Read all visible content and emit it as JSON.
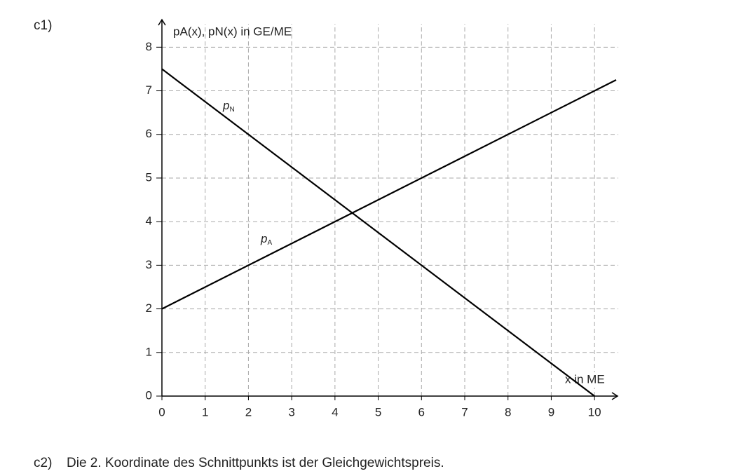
{
  "part1": {
    "label": "c1)"
  },
  "chart_data": {
    "type": "line",
    "y_label": "pA(x), pN(x) in GE/ME",
    "x_label": "x in ME",
    "xlim": [
      0,
      10.5
    ],
    "ylim": [
      0,
      8.6
    ],
    "xticks": [
      0,
      1,
      2,
      3,
      4,
      5,
      6,
      7,
      8,
      9,
      10
    ],
    "yticks": [
      0,
      1,
      2,
      3,
      4,
      5,
      6,
      7,
      8
    ],
    "grid": true,
    "series": [
      {
        "name": "pA",
        "color": "#000000",
        "x": [
          0,
          10.5
        ],
        "values": [
          2,
          7.25
        ]
      },
      {
        "name": "pN",
        "color": "#000000",
        "x": [
          0,
          10
        ],
        "values": [
          7.5,
          0
        ]
      }
    ]
  },
  "part2": {
    "label": "c2)",
    "text": "Die 2. Koordinate des Schnittpunkts ist der Gleichgewichtspreis."
  }
}
